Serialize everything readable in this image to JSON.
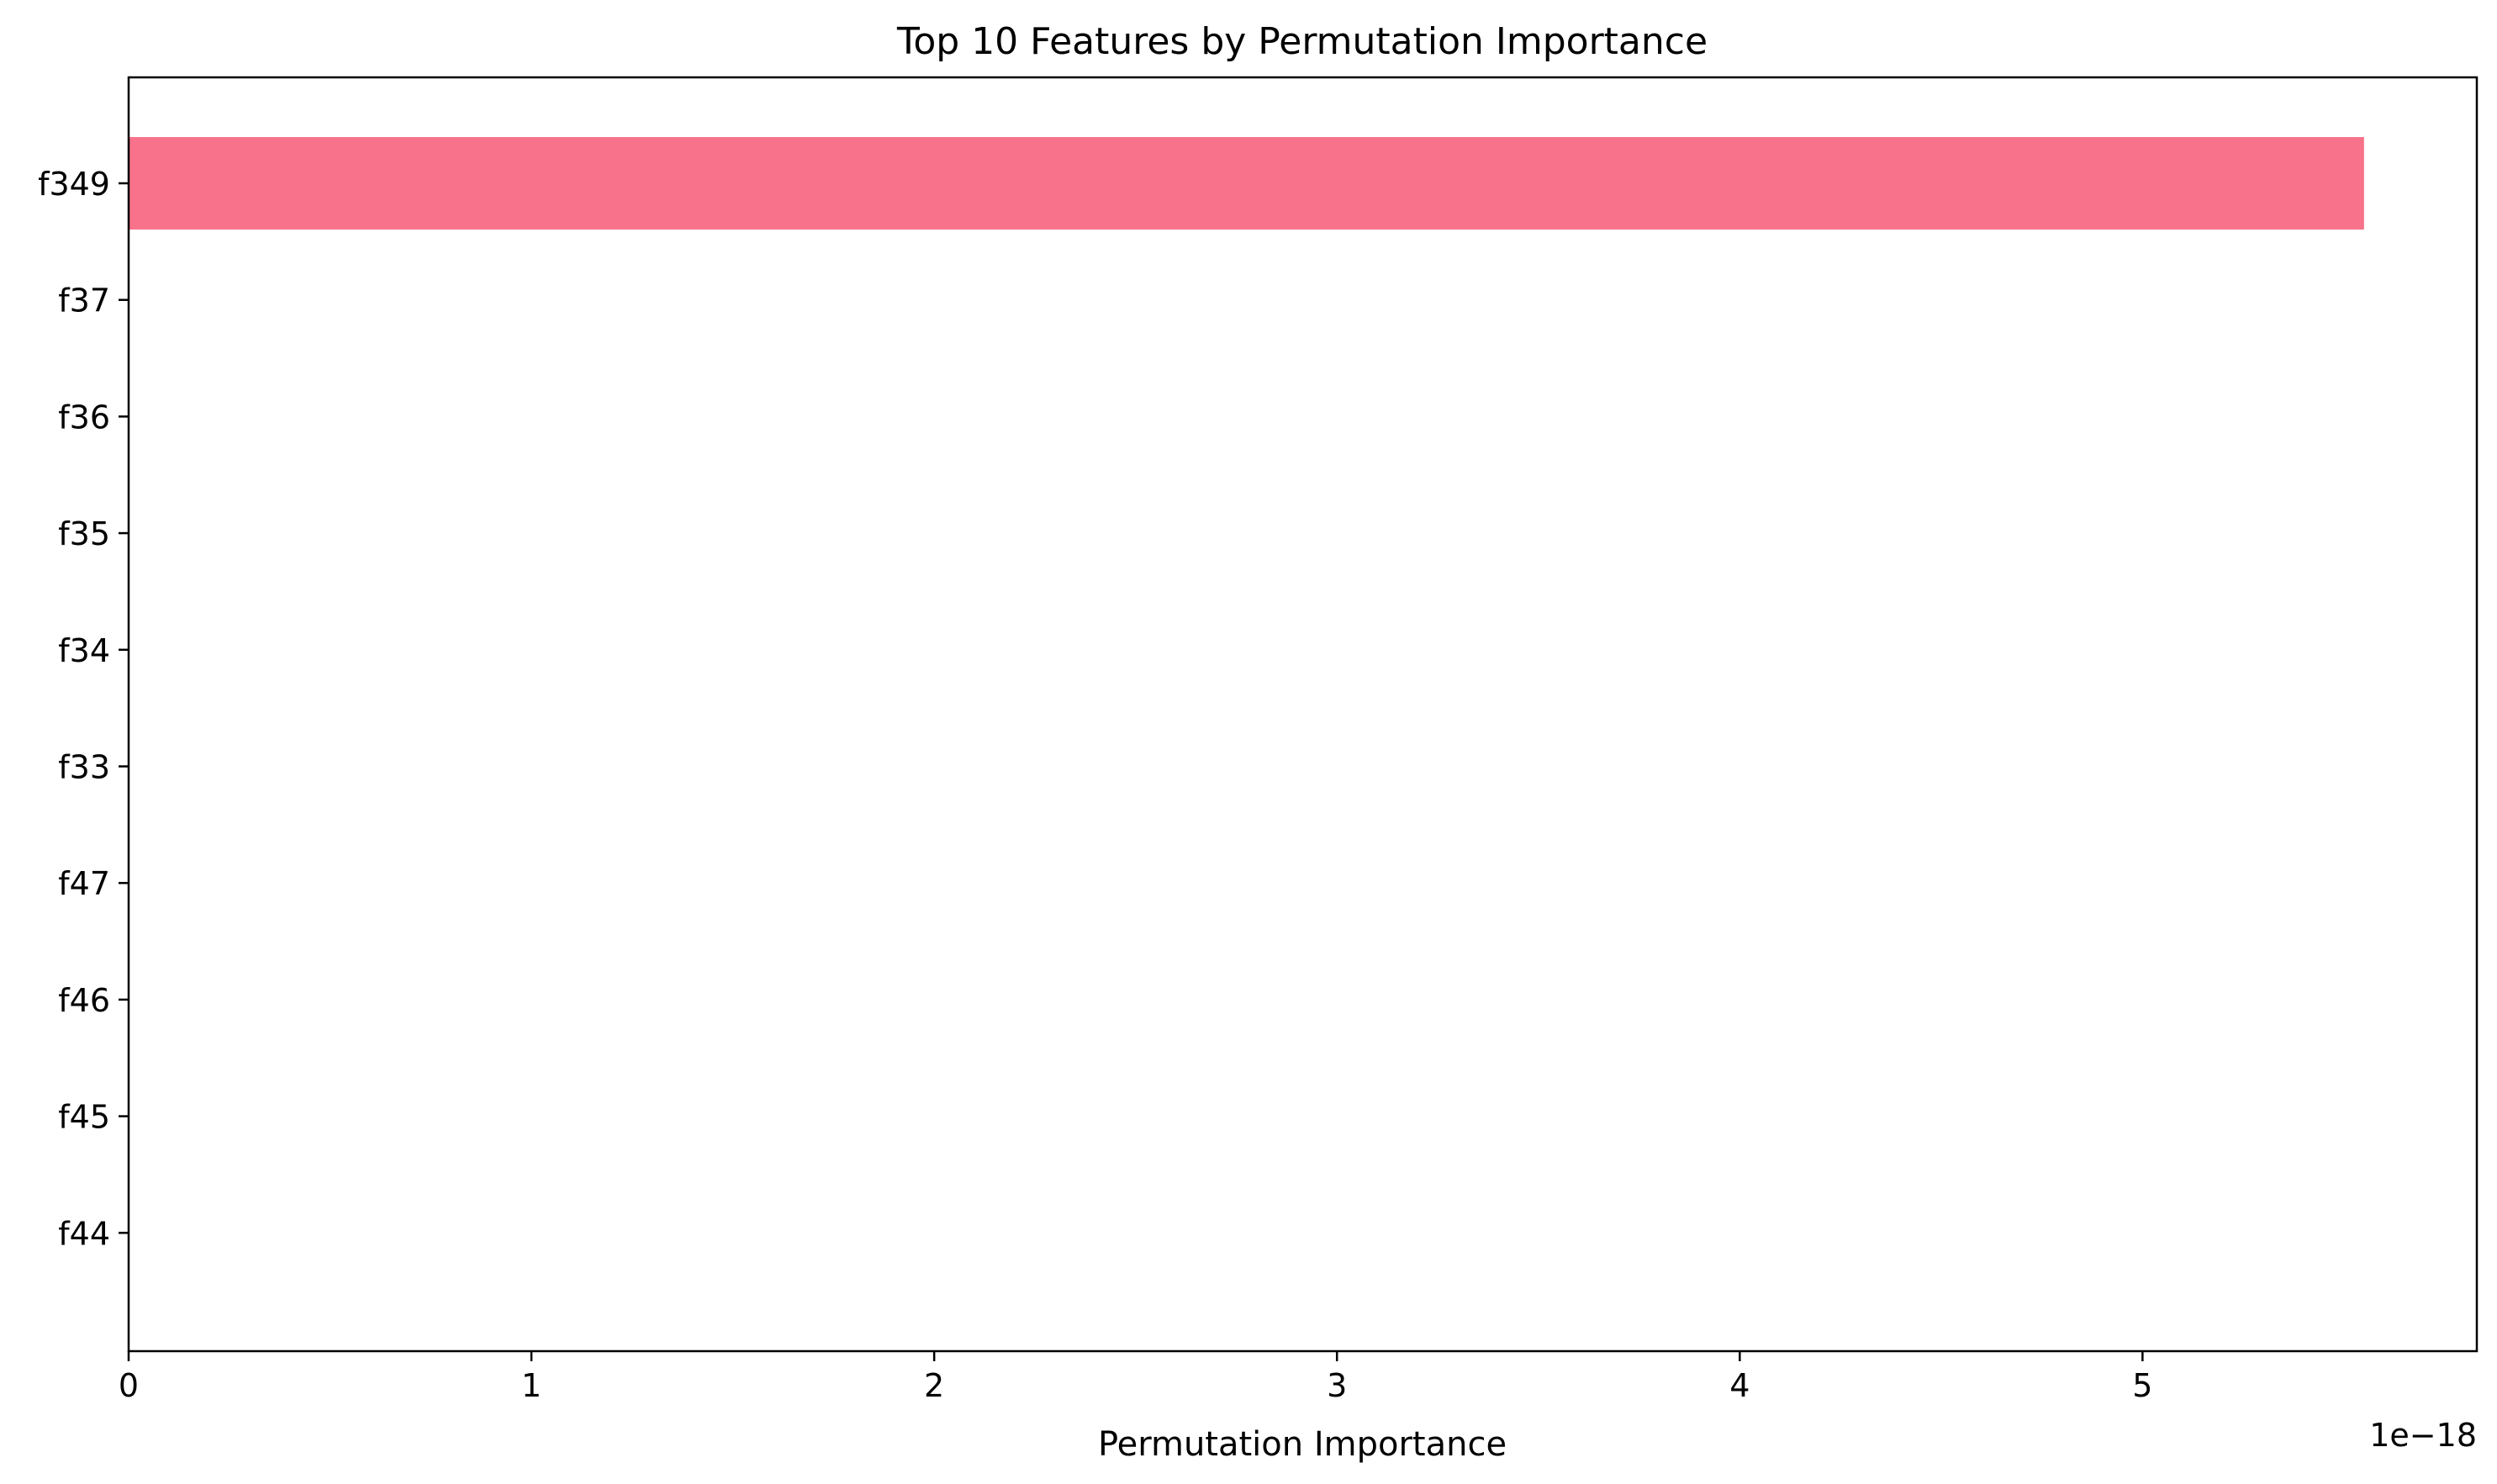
{
  "chart_data": {
    "type": "bar",
    "orientation": "horizontal",
    "title": "Top 10 Features by Permutation Importance",
    "xlabel": "Permutation Importance",
    "ylabel": "",
    "x_offset_text": "1e−18",
    "x_scale_factor": 1e-18,
    "xlim": [
      0,
      5.83
    ],
    "x_ticks": [
      0,
      1,
      2,
      3,
      4,
      5
    ],
    "x_tick_labels": [
      "0",
      "1",
      "2",
      "3",
      "4",
      "5"
    ],
    "categories": [
      "f349",
      "f37",
      "f36",
      "f35",
      "f34",
      "f33",
      "f47",
      "f46",
      "f45",
      "f44"
    ],
    "values": [
      5.55,
      0,
      0,
      0,
      0,
      0,
      0,
      0,
      0,
      0
    ],
    "bar_color": "#f7728a",
    "grid": false,
    "legend": "none"
  }
}
